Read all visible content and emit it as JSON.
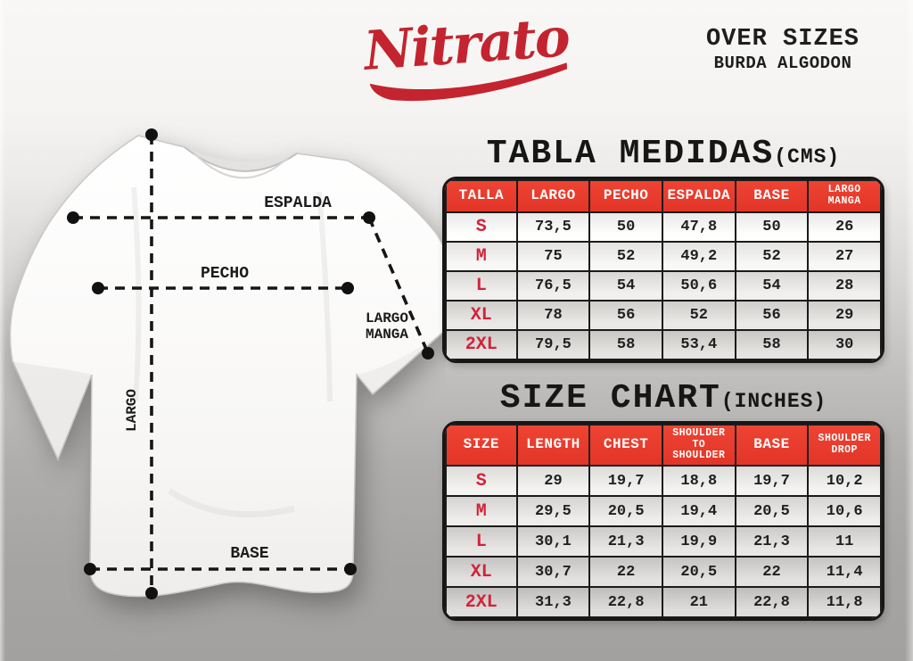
{
  "header": {
    "logo_text": "Nitrato",
    "subtitle_line1": "OVER SIZES",
    "subtitle_line2": "BURDA ALGODON"
  },
  "diagram": {
    "espalda_label": "ESPALDA",
    "pecho_label": "PECHO",
    "largo_manga_label_line1": "LARGO",
    "largo_manga_label_line2": "MANGA",
    "largo_label": "LARGO",
    "base_label": "BASE"
  },
  "chart_data": [
    {
      "type": "table",
      "title": "TABLA MEDIDAS",
      "unit_label": "(CMS)",
      "columns": [
        "TALLA",
        "LARGO",
        "PECHO",
        "ESPALDA",
        "BASE",
        "LARGO\nMANGA"
      ],
      "rows": [
        [
          "S",
          "73,5",
          "50",
          "47,8",
          "50",
          "26"
        ],
        [
          "M",
          "75",
          "52",
          "49,2",
          "52",
          "27"
        ],
        [
          "L",
          "76,5",
          "54",
          "50,6",
          "54",
          "28"
        ],
        [
          "XL",
          "78",
          "56",
          "52",
          "56",
          "29"
        ],
        [
          "2XL",
          "79,5",
          "58",
          "53,4",
          "58",
          "30"
        ]
      ]
    },
    {
      "type": "table",
      "title": "SIZE CHART",
      "unit_label": "(INCHES)",
      "columns": [
        "SIZE",
        "LENGTH",
        "CHEST",
        "SHOULDER\nTO SHOULDER",
        "BASE",
        "SHOULDER\nDROP"
      ],
      "rows": [
        [
          "S",
          "29",
          "19,7",
          "18,8",
          "19,7",
          "10,2"
        ],
        [
          "M",
          "29,5",
          "20,5",
          "19,4",
          "20,5",
          "10,6"
        ],
        [
          "L",
          "30,1",
          "21,3",
          "19,9",
          "21,3",
          "11"
        ],
        [
          "XL",
          "30,7",
          "22",
          "20,5",
          "22",
          "11,4"
        ],
        [
          "2XL",
          "31,3",
          "22,8",
          "21",
          "22,8",
          "11,8"
        ]
      ]
    }
  ],
  "colors": {
    "logo_red": "#c3242f",
    "header_red": "#e23528",
    "size_red": "#d02339",
    "ink": "#1a1a1a"
  }
}
